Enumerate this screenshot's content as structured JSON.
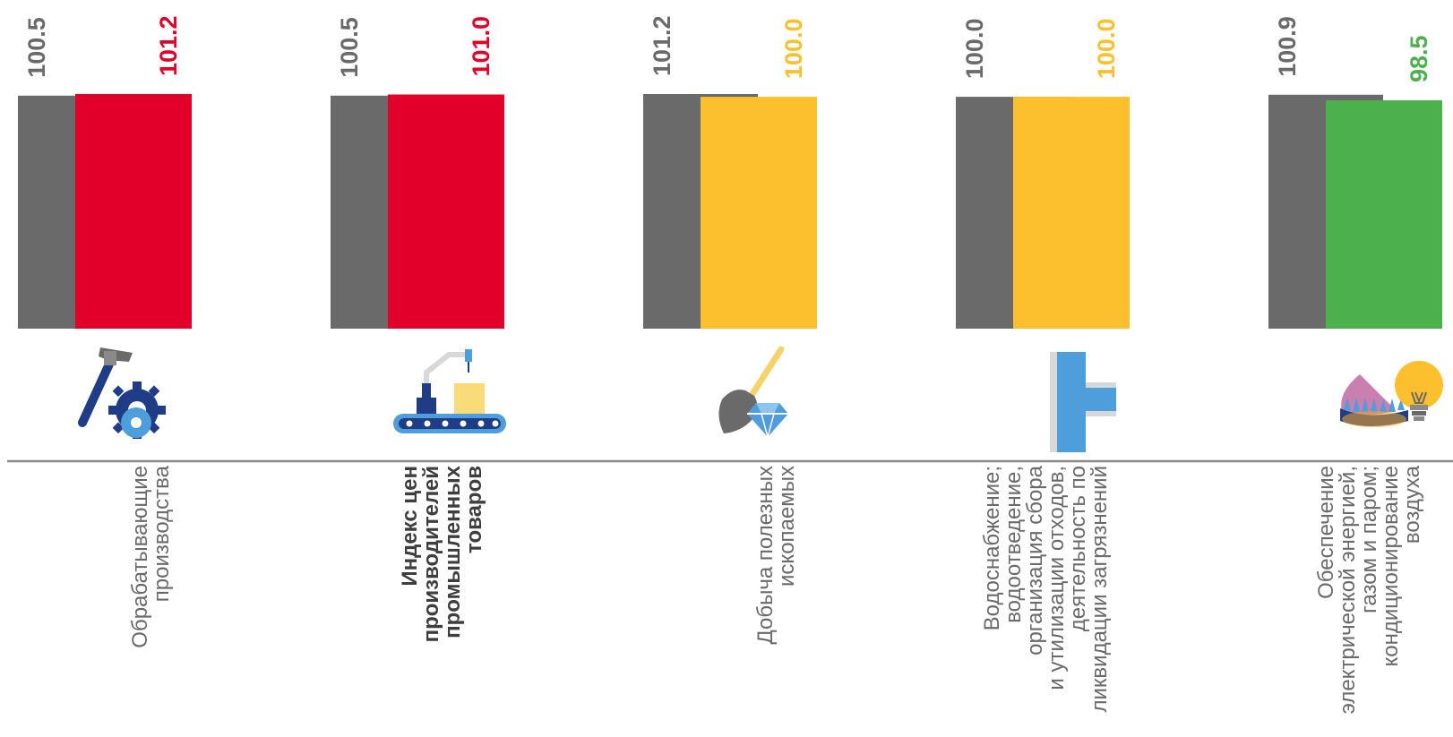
{
  "chart_data": {
    "type": "bar",
    "categories": [
      [
        "Обрабатывающие",
        "производства"
      ],
      [
        "Индекс цен",
        "производителей",
        "промышленных",
        "товаров"
      ],
      [
        "Добыча полезных",
        "ископаемых"
      ],
      [
        "Водоснабжение;",
        "водоотведение,",
        "организация сбора",
        "и  утилизации отходов,",
        "деятельность по",
        "ликвидации загрязнений"
      ],
      [
        "Обеспечение",
        "электрической энергией,",
        "газом и паром;",
        "кондиционирование",
        "воздуха"
      ]
    ],
    "bold_category": 1,
    "icons": [
      "hammer-gear-icon",
      "conveyor-robot-icon",
      "shovel-diamond-icon",
      "water-pipe-icon",
      "gas-flame-lightbulb-icon"
    ],
    "series": [
      {
        "values": [
          100.5,
          100.5,
          101.2,
          100.0,
          100.9
        ],
        "color": "#6a6a6a",
        "label_colors": [
          "#6a6a6a",
          "#6a6a6a",
          "#6a6a6a",
          "#6a6a6a",
          "#6a6a6a"
        ]
      },
      {
        "values": [
          101.2,
          101.0,
          100.0,
          100.0,
          98.5
        ],
        "colors": [
          "#e2002a",
          "#e2002a",
          "#fcc02e",
          "#fcc02e",
          "#4cb14c"
        ],
        "label_colors": [
          "#e2002a",
          "#e2002a",
          "#fcc02e",
          "#fcc02e",
          "#4cb14c"
        ]
      }
    ],
    "value_labels": [
      [
        "100.5",
        "100.5",
        "101.2",
        "100.0",
        "100.9"
      ],
      [
        "101.2",
        "101.0",
        "100.0",
        "100.0",
        "98.5"
      ]
    ],
    "axis_color": "#8a8a8a"
  }
}
